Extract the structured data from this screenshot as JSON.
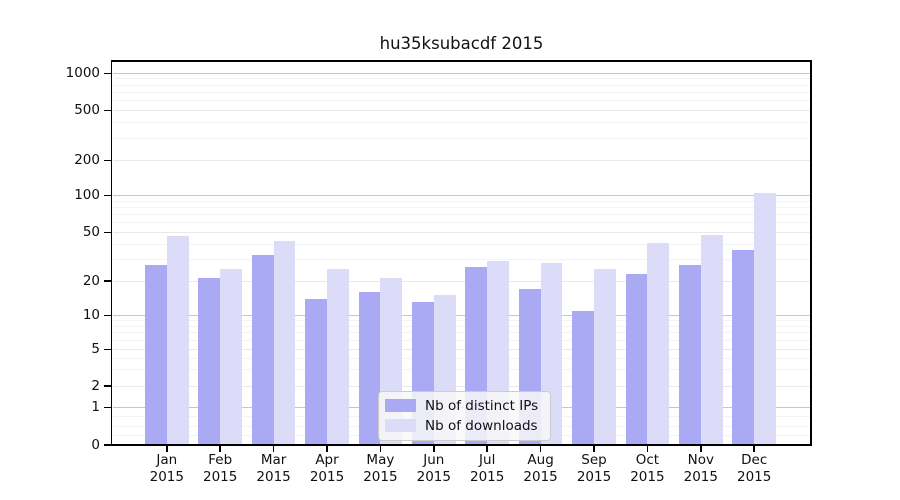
{
  "title": "hu35ksubacdf 2015",
  "chart_data": {
    "type": "bar",
    "title": "hu35ksubacdf 2015",
    "categories": [
      "Jan",
      "Feb",
      "Mar",
      "Apr",
      "May",
      "Jun",
      "Jul",
      "Aug",
      "Sep",
      "Oct",
      "Nov",
      "Dec"
    ],
    "category_year": "2015",
    "series": [
      {
        "name": "Nb of distinct IPs",
        "color": "#a9a9f4",
        "values": [
          27,
          21,
          33,
          14,
          16,
          13,
          26,
          17,
          11,
          23,
          27,
          36
        ]
      },
      {
        "name": "Nb of downloads",
        "color": "#dcdcf8",
        "values": [
          47,
          25,
          43,
          25,
          21,
          15,
          29,
          28,
          25,
          41,
          48,
          105
        ]
      }
    ],
    "yticks": [
      0,
      1,
      2,
      5,
      10,
      20,
      50,
      100,
      200,
      500,
      1000
    ],
    "ylim": [
      0,
      1000
    ],
    "yscale": "symlog",
    "grid": true,
    "legend_position": "lower center"
  }
}
